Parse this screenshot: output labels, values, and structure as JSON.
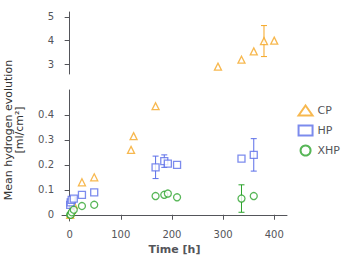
{
  "chart_data": {
    "type": "scatter",
    "xlabel": "Time [h]",
    "ylabel": [
      "Mean hydrogen evolution",
      "[ml/cm²]"
    ],
    "xlim": [
      -15,
      425
    ],
    "xticks": [
      0,
      100,
      200,
      300,
      400
    ],
    "ylim": [
      -0.025,
      0.5
    ],
    "yticks": [
      0.0,
      0.1,
      0.2,
      0.3,
      0.4
    ],
    "y2lim": [
      2.6,
      5.2
    ],
    "y2ticks": [
      3,
      4,
      5
    ],
    "grid": false,
    "legend": "right",
    "series": [
      {
        "name": "CP",
        "color": "#f5a623",
        "marker": "triangle",
        "x": [
          1,
          2,
          4,
          8,
          24,
          48,
          120,
          125,
          168
        ],
        "values": [
          0.0,
          0.01,
          0.02,
          0.04,
          0.13,
          0.15,
          0.26,
          0.315,
          0.435
        ],
        "yerr": [
          0.0,
          0.0,
          0.0,
          0.0,
          0.0,
          0.0,
          0.0,
          0.0,
          0.0
        ]
      },
      {
        "name": "CP",
        "color": "#f5a623",
        "marker": "triangle",
        "axis": "y2",
        "x": [
          290,
          336,
          360,
          380,
          400
        ],
        "values": [
          2.91,
          3.2,
          3.55,
          3.98,
          4.0
        ],
        "yerr": [
          0.0,
          0.0,
          0.0,
          0.65,
          0.0
        ]
      },
      {
        "name": "HP",
        "color": "#5b6ee8",
        "marker": "square",
        "x": [
          1,
          2,
          4,
          8,
          24,
          48,
          168,
          185,
          192,
          210,
          336,
          360
        ],
        "values": [
          0.04,
          0.05,
          0.06,
          0.065,
          0.08,
          0.09,
          0.19,
          0.215,
          0.205,
          0.2,
          0.225,
          0.24
        ],
        "yerr": [
          0.0,
          0.0,
          0.0,
          0.0,
          0.0,
          0.0,
          0.045,
          0.025,
          0.0,
          0.0,
          0.0,
          0.065
        ]
      },
      {
        "name": "XHP",
        "color": "#2da42d",
        "marker": "circle",
        "x": [
          1,
          2,
          4,
          8,
          24,
          48,
          168,
          185,
          192,
          210,
          336,
          360
        ],
        "values": [
          0.0,
          0.0,
          0.01,
          0.02,
          0.035,
          0.04,
          0.075,
          0.08,
          0.085,
          0.07,
          0.065,
          0.075
        ],
        "yerr": [
          0.0,
          0.0,
          0.0,
          0.0,
          0.0,
          0.0,
          0.0,
          0.0,
          0.0,
          0.0,
          0.055,
          0.0
        ]
      }
    ]
  }
}
